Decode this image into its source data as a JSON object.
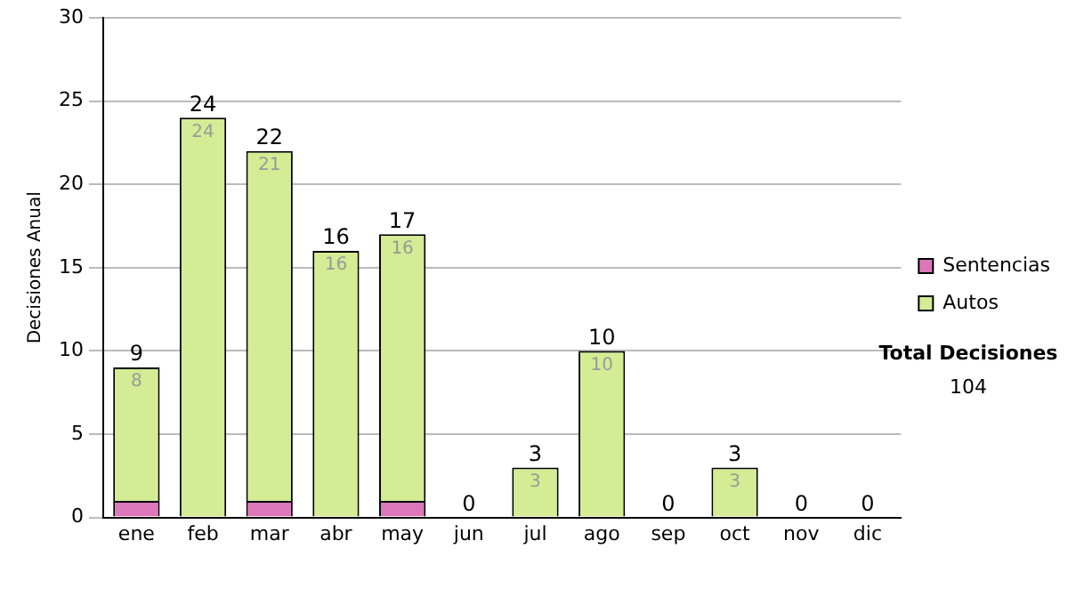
{
  "chart_data": {
    "type": "bar",
    "stacked": true,
    "ylabel": "Decisiones Anual",
    "categories": [
      "ene",
      "feb",
      "mar",
      "abr",
      "may",
      "jun",
      "jul",
      "ago",
      "sep",
      "oct",
      "nov",
      "dic"
    ],
    "series": [
      {
        "name": "Sentencias",
        "color": "#dd77bb",
        "values": [
          1,
          0,
          1,
          0,
          1,
          0,
          0,
          0,
          0,
          0,
          0,
          0
        ]
      },
      {
        "name": "Autos",
        "color": "#d4ec94",
        "values": [
          8,
          24,
          21,
          16,
          16,
          0,
          3,
          10,
          0,
          3,
          0,
          0
        ],
        "value_labels": [
          "8",
          "24",
          "21",
          "16",
          "16",
          null,
          "3",
          "10",
          null,
          "3",
          null,
          null
        ]
      }
    ],
    "totals": [
      "9",
      "24",
      "22",
      "16",
      "17",
      "0",
      "3",
      "10",
      "0",
      "3",
      "0",
      "0"
    ],
    "ylim": [
      0,
      30
    ],
    "yticks": [
      0,
      5,
      10,
      15,
      20,
      25,
      30
    ],
    "grid": "y",
    "legend": "right",
    "annotations": [
      "Total Decisiones",
      "104"
    ]
  }
}
